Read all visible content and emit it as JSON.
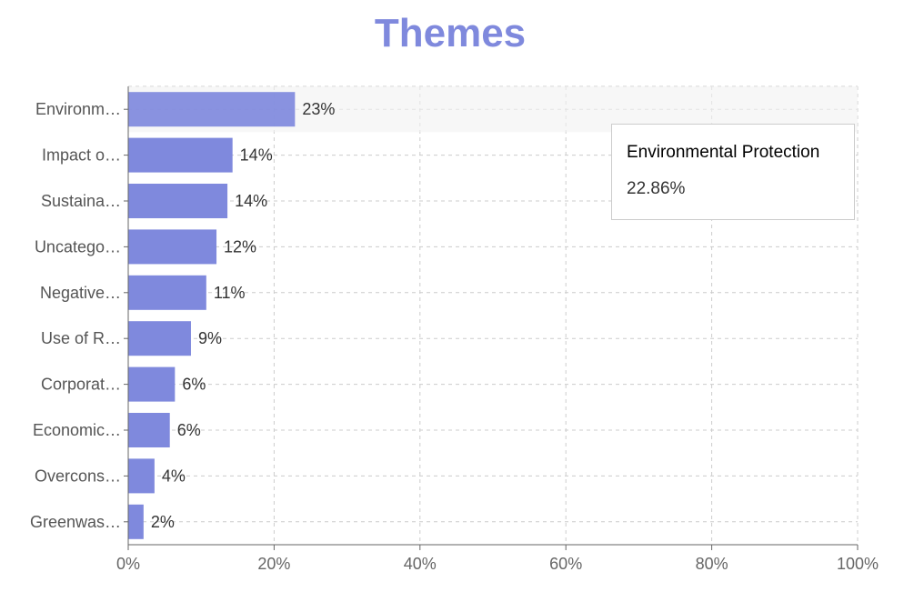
{
  "title": "Themes",
  "chart_data": {
    "type": "bar",
    "orientation": "horizontal",
    "categories": [
      "Environm…",
      "Impact o…",
      "Sustaina…",
      "Uncatego…",
      "Negative…",
      "Use of R…",
      "Corporat…",
      "Economic…",
      "Overcons…",
      "Greenwas…"
    ],
    "values": [
      22.86,
      14.3,
      13.6,
      12.1,
      10.7,
      8.6,
      6.4,
      5.7,
      3.6,
      2.1
    ],
    "data_labels": [
      "23%",
      "14%",
      "14%",
      "12%",
      "11%",
      "9%",
      "6%",
      "6%",
      "4%",
      "2%"
    ],
    "xlim": [
      0,
      100
    ],
    "x_ticks": [
      "0%",
      "20%",
      "40%",
      "60%",
      "80%",
      "100%"
    ],
    "x_tick_values": [
      0,
      20,
      40,
      60,
      80,
      100
    ],
    "grid": true,
    "bar_color": "#7f89dd",
    "highlight_index": 0
  },
  "tooltip": {
    "title": "Environmental Protection",
    "value": "22.86%"
  }
}
